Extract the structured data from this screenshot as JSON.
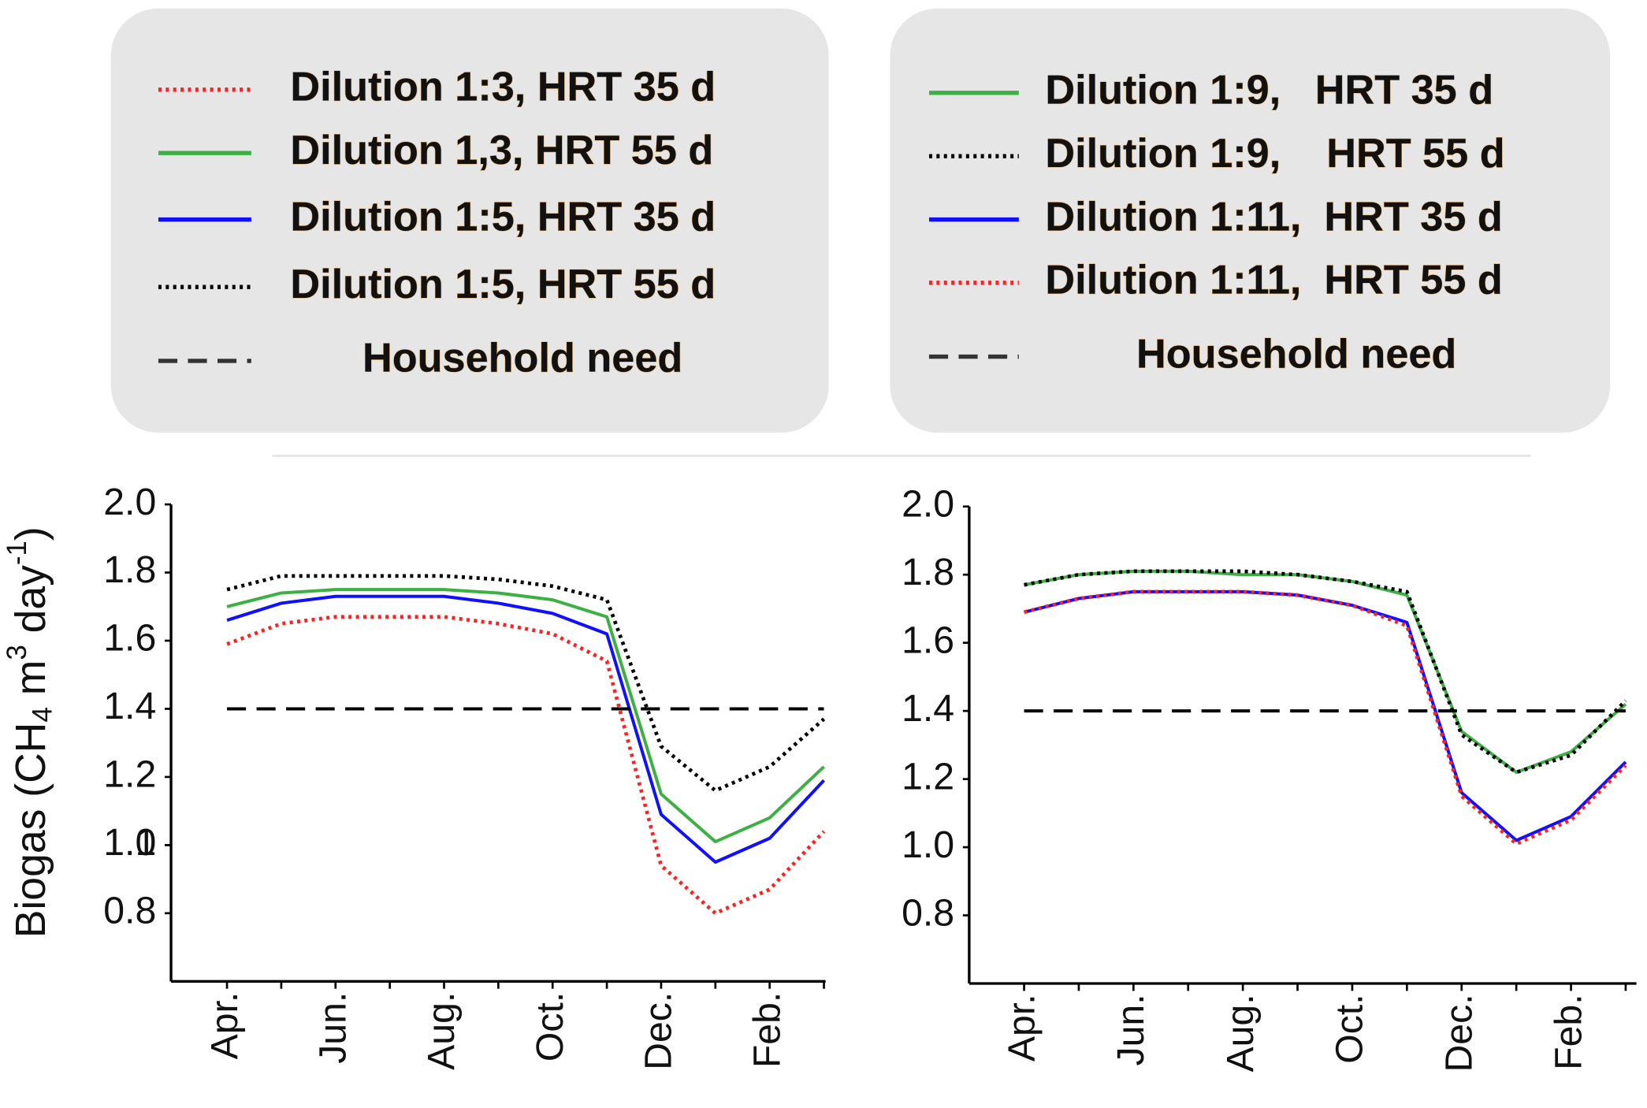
{
  "chart_data": [
    {
      "type": "line",
      "y_label_parts": [
        "Biogas (CH",
        "4",
        " m",
        "3",
        " day",
        "-1",
        ")"
      ],
      "categories": [
        "Apr.",
        null,
        "Jun.",
        null,
        "Aug.",
        null,
        "Oct.",
        null,
        "Dec.",
        null,
        "Feb.",
        null
      ],
      "ylim": [
        0.6,
        2.0
      ],
      "yticks": [
        0.8,
        1,
        {
          "value": 1,
          "label": "1.0"
        },
        1.2,
        1.4,
        1.6,
        1.8,
        {
          "value": 2,
          "label": "2.0"
        }
      ],
      "series": [
        {
          "name": "Dilution 1:3, HRT 35 d",
          "color": "#ff2020",
          "dash": "dotted",
          "values": [
            1.59,
            1.65,
            1.67,
            1.67,
            1.67,
            1.65,
            1.62,
            1.54,
            0.94,
            0.8,
            0.87,
            1.04
          ]
        },
        {
          "name": "Dilution 1,3, HRT 55 d",
          "color": "#3cb043",
          "dash": "solid",
          "values": [
            1.7,
            1.74,
            1.75,
            1.75,
            1.75,
            1.74,
            1.72,
            1.67,
            1.15,
            1.01,
            1.08,
            1.23
          ]
        },
        {
          "name": "Dilution 1:5, HRT 35 d",
          "color": "#1010ff",
          "dash": "solid",
          "values": [
            1.66,
            1.71,
            1.73,
            1.73,
            1.73,
            1.71,
            1.68,
            1.62,
            1.09,
            0.95,
            1.02,
            1.19
          ]
        },
        {
          "name": "Dilution 1:5, HRT 55 d",
          "color": "#000000",
          "dash": "dotted",
          "values": [
            1.75,
            1.79,
            1.79,
            1.79,
            1.79,
            1.78,
            1.76,
            1.72,
            1.29,
            1.16,
            1.23,
            1.37
          ]
        },
        {
          "name": "Household need",
          "color": "#000000",
          "dash": "dashed",
          "values": [
            1.4,
            1.4,
            1.4,
            1.4,
            1.4,
            1.4,
            1.4,
            1.4,
            1.4,
            1.4,
            1.4,
            1.4
          ]
        }
      ]
    },
    {
      "type": "line",
      "categories": [
        "Apr.",
        null,
        "Jun.",
        null,
        "Aug.",
        null,
        "Oct.",
        null,
        "Dec.",
        null,
        "Feb.",
        null
      ],
      "ylim": [
        0.6,
        2.0
      ],
      "yticks": [
        0.8,
        {
          "value": 1,
          "label": "1.0"
        },
        1.2,
        1.4,
        1.6,
        1.8,
        {
          "value": 2,
          "label": "2.0"
        }
      ],
      "series": [
        {
          "name": "Dilution 1:9,   HRT 35 d",
          "color": "#3cb043",
          "dash": "solid",
          "values": [
            1.77,
            1.8,
            1.81,
            1.81,
            1.8,
            1.8,
            1.78,
            1.74,
            1.34,
            1.22,
            1.28,
            1.42
          ]
        },
        {
          "name": "Dilution 1:9,    HRT 55 d",
          "color": "#000000",
          "dash": "dotted",
          "values": [
            1.77,
            1.8,
            1.81,
            1.81,
            1.81,
            1.8,
            1.78,
            1.75,
            1.33,
            1.22,
            1.27,
            1.43
          ]
        },
        {
          "name": "Dilution 1:11,  HRT 35 d",
          "color": "#1010ff",
          "dash": "solid",
          "values": [
            1.69,
            1.73,
            1.75,
            1.75,
            1.75,
            1.74,
            1.71,
            1.66,
            1.16,
            1.02,
            1.09,
            1.25
          ]
        },
        {
          "name": "Dilution 1:11,  HRT 55 d",
          "color": "#ff2020",
          "dash": "dotted",
          "values": [
            1.69,
            1.73,
            1.75,
            1.75,
            1.75,
            1.74,
            1.71,
            1.65,
            1.15,
            1.01,
            1.08,
            1.24
          ]
        },
        {
          "name": "Household need",
          "color": "#000000",
          "dash": "dashed",
          "values": [
            1.4,
            1.4,
            1.4,
            1.4,
            1.4,
            1.4,
            1.4,
            1.4,
            1.4,
            1.4,
            1.4,
            1.4
          ]
        }
      ]
    }
  ]
}
